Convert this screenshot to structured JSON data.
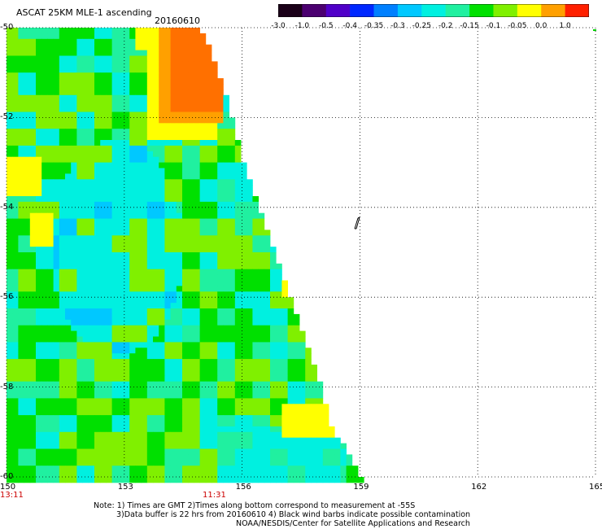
{
  "header": {
    "title": "ASCAT 25KM MLE-1 ascending",
    "date": "20160610"
  },
  "colorbar": {
    "labels": [
      "-3.0",
      "-1.0",
      "-0.5",
      "-0.4",
      "-0.35",
      "-0.3",
      "-0.25",
      "-0.2",
      "-0.15",
      "-0.1",
      "-0.05",
      "0.0",
      "1.0"
    ],
    "colors": [
      "#1a0018",
      "#4b0070",
      "#5000c8",
      "#0028ff",
      "#0080ff",
      "#00c8ff",
      "#00f0e0",
      "#20f0a0",
      "#00e000",
      "#80f000",
      "#ffff00",
      "#ffa000",
      "#ff2000"
    ]
  },
  "map": {
    "lon_labels": [
      "150",
      "153",
      "156",
      "159",
      "162",
      "165"
    ],
    "lat_labels": [
      "-50",
      "-52",
      "-54",
      "-56",
      "-58",
      "-60"
    ],
    "time_labels": [
      "13:11",
      "11:31"
    ],
    "lon_range": [
      150,
      165
    ],
    "lat_range": [
      -50,
      -60
    ]
  },
  "notes": {
    "line1": "Note: 1) Times are GMT 2)Times along bottom correspond to measurement at -55S",
    "line2": "3)Data buffer is 22 hrs from 20160610 4) Black wind barbs indicate possible contamination",
    "line3": "NOAA/NESDIS/Center for Satellite Applications and Research"
  }
}
